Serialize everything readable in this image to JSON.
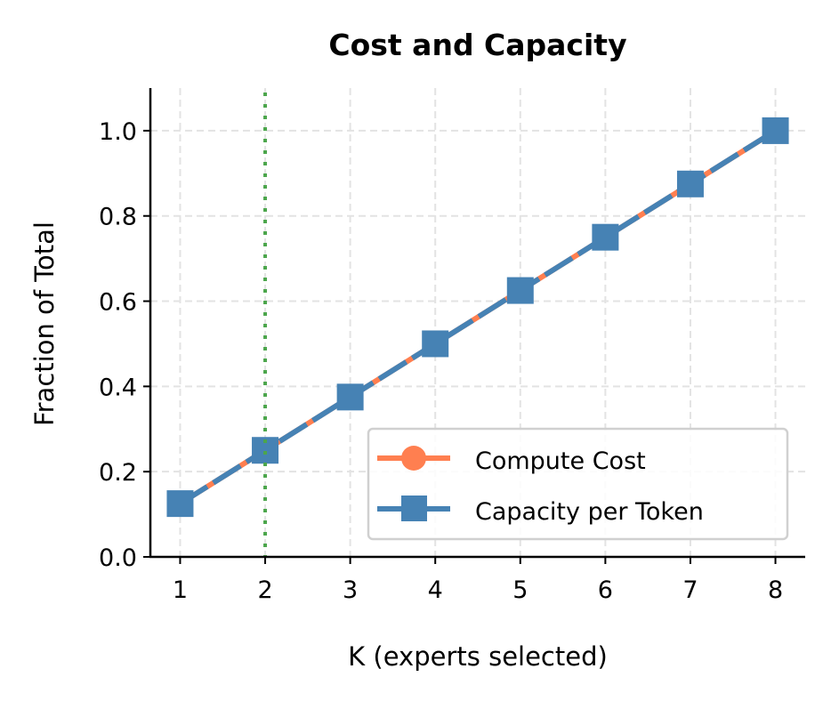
{
  "chart_data": {
    "type": "line",
    "title": "Cost and Capacity",
    "xlabel": "K (experts selected)",
    "ylabel": "Fraction of Total",
    "x": [
      1,
      2,
      3,
      4,
      5,
      6,
      7,
      8
    ],
    "xlim": [
      0.65,
      8.35
    ],
    "ylim": [
      0,
      1.1
    ],
    "xticks": [
      "1",
      "2",
      "3",
      "4",
      "5",
      "6",
      "7",
      "8"
    ],
    "yticks": [
      "0.0",
      "0.2",
      "0.4",
      "0.6",
      "0.8",
      "1.0"
    ],
    "grid": true,
    "legend_position": "lower-right",
    "series": [
      {
        "name": "Compute Cost",
        "values": [
          0.125,
          0.25,
          0.375,
          0.5,
          0.625,
          0.75,
          0.875,
          1.0
        ],
        "color": "#FF7F50",
        "marker": "circle",
        "linestyle": "solid"
      },
      {
        "name": "Capacity per Token",
        "values": [
          0.125,
          0.25,
          0.375,
          0.5,
          0.625,
          0.75,
          0.875,
          1.0
        ],
        "color": "#4682B4",
        "marker": "square",
        "linestyle": "dashed"
      }
    ],
    "vline": {
      "x": 2,
      "color": "#4CA64C",
      "linestyle": "dotted"
    }
  }
}
